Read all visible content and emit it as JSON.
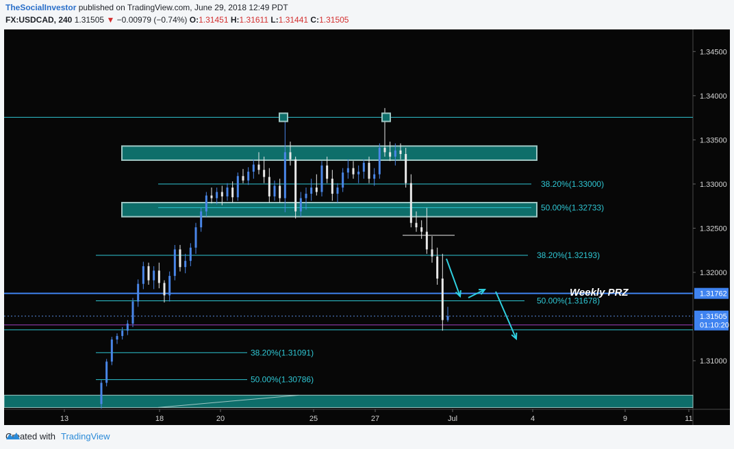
{
  "header": {
    "author": "TheSocialInvestor",
    "published_text": "published on TradingView.com, June 29, 2018 12:49 PDT",
    "symbol": "FX:USDCAD, 240",
    "last": "1.31505",
    "change": "−0.00979 (−0.74%)",
    "o_label": "O:",
    "o_value": "1.31451",
    "h_label": "H:",
    "h_value": "1.31611",
    "l_label": "L:",
    "l_value": "1.31441",
    "c_label": "C:",
    "c_value": "1.31505"
  },
  "footer": {
    "created_with": "Created with",
    "brand": "TradingView"
  },
  "colors": {
    "bull": "#4a86e8",
    "bear": "#e9e9e9",
    "zone": "#0e6e6a",
    "zone_border": "#9fc7c4",
    "fib": "#2fc7d4",
    "prz": "#3f83f0",
    "arrow": "#2fd0e0"
  },
  "chart_data": {
    "type": "candlestick",
    "y_axis": {
      "ticks": [
        "1.34500",
        "1.34000",
        "1.33500",
        "1.33000",
        "1.32500",
        "1.32000",
        "1.31000"
      ],
      "range": [
        1.3045,
        1.3475
      ]
    },
    "x_axis": {
      "ticks": [
        "13",
        "18",
        "20",
        "25",
        "27",
        "Jul",
        "4",
        "9",
        "11"
      ]
    },
    "price_badges": [
      {
        "text": "1.31762",
        "value": 1.31762
      },
      {
        "text": "1.31505",
        "value": 1.31505
      },
      {
        "text": "01:10:20",
        "value": 1.31405
      }
    ],
    "fib_levels": [
      {
        "text": "38.20%(1.33000)",
        "value": 1.33
      },
      {
        "text": "50.00%(1.32733)",
        "value": 1.32733
      },
      {
        "text": "38.20%(1.32193)",
        "value": 1.32193
      },
      {
        "text": "50.00%(1.31678)",
        "value": 1.31678
      },
      {
        "text": "38.20%(1.31091)",
        "value": 1.31091
      },
      {
        "text": "50.00%(1.30786)",
        "value": 1.30786
      }
    ],
    "zones": [
      {
        "from": 1.3327,
        "to": 1.3343
      },
      {
        "from": 1.3263,
        "to": 1.3279
      },
      {
        "from": 1.3047,
        "to": 1.3061
      }
    ],
    "horizontal_lines": [
      {
        "value": 1.33755,
        "color": "#2fc7d4"
      },
      {
        "value": 1.31762,
        "color": "#3f83f0"
      },
      {
        "value": 1.31405,
        "color": "#a040c0"
      },
      {
        "value": 1.3135,
        "color": "#2fc7d4"
      }
    ],
    "annotation": {
      "text": "Weekly PRZ"
    },
    "candles": [
      {
        "o": 1.3051,
        "h": 1.3078,
        "l": 1.3046,
        "c": 1.3075
      },
      {
        "o": 1.3075,
        "h": 1.3102,
        "l": 1.3071,
        "c": 1.3099
      },
      {
        "o": 1.3099,
        "h": 1.3127,
        "l": 1.3095,
        "c": 1.3124
      },
      {
        "o": 1.3124,
        "h": 1.3131,
        "l": 1.3119,
        "c": 1.3128
      },
      {
        "o": 1.3128,
        "h": 1.3138,
        "l": 1.3124,
        "c": 1.3134
      },
      {
        "o": 1.3134,
        "h": 1.3146,
        "l": 1.3129,
        "c": 1.3142
      },
      {
        "o": 1.3142,
        "h": 1.3171,
        "l": 1.3138,
        "c": 1.3167
      },
      {
        "o": 1.3167,
        "h": 1.3192,
        "l": 1.3161,
        "c": 1.3187
      },
      {
        "o": 1.3187,
        "h": 1.3212,
        "l": 1.3181,
        "c": 1.3207
      },
      {
        "o": 1.3207,
        "h": 1.3211,
        "l": 1.3186,
        "c": 1.3191
      },
      {
        "o": 1.3191,
        "h": 1.3207,
        "l": 1.3181,
        "c": 1.3202
      },
      {
        "o": 1.3202,
        "h": 1.3211,
        "l": 1.3182,
        "c": 1.3188
      },
      {
        "o": 1.3188,
        "h": 1.3191,
        "l": 1.3166,
        "c": 1.3174
      },
      {
        "o": 1.3174,
        "h": 1.3201,
        "l": 1.3167,
        "c": 1.3196
      },
      {
        "o": 1.3196,
        "h": 1.3231,
        "l": 1.3191,
        "c": 1.3226
      },
      {
        "o": 1.3226,
        "h": 1.3231,
        "l": 1.3201,
        "c": 1.3206
      },
      {
        "o": 1.3206,
        "h": 1.3221,
        "l": 1.3199,
        "c": 1.3213
      },
      {
        "o": 1.3213,
        "h": 1.3233,
        "l": 1.3207,
        "c": 1.3228
      },
      {
        "o": 1.3228,
        "h": 1.3256,
        "l": 1.3221,
        "c": 1.3251
      },
      {
        "o": 1.3251,
        "h": 1.3273,
        "l": 1.3246,
        "c": 1.3269
      },
      {
        "o": 1.3269,
        "h": 1.3291,
        "l": 1.3263,
        "c": 1.3287
      },
      {
        "o": 1.3287,
        "h": 1.3296,
        "l": 1.3278,
        "c": 1.3284
      },
      {
        "o": 1.3284,
        "h": 1.3296,
        "l": 1.3277,
        "c": 1.3291
      },
      {
        "o": 1.3291,
        "h": 1.3298,
        "l": 1.3276,
        "c": 1.3286
      },
      {
        "o": 1.3286,
        "h": 1.3301,
        "l": 1.3281,
        "c": 1.3296
      },
      {
        "o": 1.3296,
        "h": 1.3303,
        "l": 1.3279,
        "c": 1.3285
      },
      {
        "o": 1.3285,
        "h": 1.3313,
        "l": 1.3281,
        "c": 1.3309
      },
      {
        "o": 1.3309,
        "h": 1.3317,
        "l": 1.3301,
        "c": 1.3304
      },
      {
        "o": 1.3304,
        "h": 1.3319,
        "l": 1.3299,
        "c": 1.3314
      },
      {
        "o": 1.3314,
        "h": 1.3328,
        "l": 1.3306,
        "c": 1.3322
      },
      {
        "o": 1.3322,
        "h": 1.3336,
        "l": 1.3311,
        "c": 1.3316
      },
      {
        "o": 1.3316,
        "h": 1.3331,
        "l": 1.3301,
        "c": 1.3308
      },
      {
        "o": 1.3308,
        "h": 1.3318,
        "l": 1.3279,
        "c": 1.3286
      },
      {
        "o": 1.3286,
        "h": 1.3304,
        "l": 1.3281,
        "c": 1.3298
      },
      {
        "o": 1.3298,
        "h": 1.3306,
        "l": 1.3279,
        "c": 1.3284
      },
      {
        "o": 1.3284,
        "h": 1.3381,
        "l": 1.3268,
        "c": 1.3336
      },
      {
        "o": 1.3336,
        "h": 1.3348,
        "l": 1.3321,
        "c": 1.3328
      },
      {
        "o": 1.3328,
        "h": 1.3331,
        "l": 1.3261,
        "c": 1.3269
      },
      {
        "o": 1.3269,
        "h": 1.3291,
        "l": 1.3263,
        "c": 1.3284
      },
      {
        "o": 1.3284,
        "h": 1.3296,
        "l": 1.3271,
        "c": 1.3289
      },
      {
        "o": 1.3289,
        "h": 1.3306,
        "l": 1.3281,
        "c": 1.3296
      },
      {
        "o": 1.3296,
        "h": 1.3311,
        "l": 1.3287,
        "c": 1.3291
      },
      {
        "o": 1.3291,
        "h": 1.3326,
        "l": 1.3286,
        "c": 1.3321
      },
      {
        "o": 1.3321,
        "h": 1.3331,
        "l": 1.3301,
        "c": 1.3306
      },
      {
        "o": 1.3306,
        "h": 1.3316,
        "l": 1.3281,
        "c": 1.3289
      },
      {
        "o": 1.3289,
        "h": 1.3301,
        "l": 1.3279,
        "c": 1.3296
      },
      {
        "o": 1.3296,
        "h": 1.3318,
        "l": 1.3291,
        "c": 1.3313
      },
      {
        "o": 1.3313,
        "h": 1.3328,
        "l": 1.3306,
        "c": 1.3318
      },
      {
        "o": 1.3318,
        "h": 1.3326,
        "l": 1.3306,
        "c": 1.3311
      },
      {
        "o": 1.3311,
        "h": 1.3321,
        "l": 1.3301,
        "c": 1.3314
      },
      {
        "o": 1.3314,
        "h": 1.3328,
        "l": 1.3306,
        "c": 1.3324
      },
      {
        "o": 1.3324,
        "h": 1.3331,
        "l": 1.3301,
        "c": 1.3306
      },
      {
        "o": 1.3306,
        "h": 1.3318,
        "l": 1.3298,
        "c": 1.3311
      },
      {
        "o": 1.3311,
        "h": 1.3346,
        "l": 1.3306,
        "c": 1.3341
      },
      {
        "o": 1.3341,
        "h": 1.3386,
        "l": 1.3331,
        "c": 1.3336
      },
      {
        "o": 1.3336,
        "h": 1.3348,
        "l": 1.3326,
        "c": 1.3331
      },
      {
        "o": 1.3331,
        "h": 1.3346,
        "l": 1.3321,
        "c": 1.3338
      },
      {
        "o": 1.3338,
        "h": 1.3346,
        "l": 1.3328,
        "c": 1.3334
      },
      {
        "o": 1.3334,
        "h": 1.3341,
        "l": 1.3296,
        "c": 1.3301
      },
      {
        "o": 1.3301,
        "h": 1.3311,
        "l": 1.3251,
        "c": 1.3256
      },
      {
        "o": 1.3256,
        "h": 1.3269,
        "l": 1.3246,
        "c": 1.3251
      },
      {
        "o": 1.3251,
        "h": 1.3259,
        "l": 1.3238,
        "c": 1.3246
      },
      {
        "o": 1.3246,
        "h": 1.3273,
        "l": 1.3221,
        "c": 1.3226
      },
      {
        "o": 1.3226,
        "h": 1.3241,
        "l": 1.3211,
        "c": 1.3218
      },
      {
        "o": 1.3218,
        "h": 1.3228,
        "l": 1.3186,
        "c": 1.3193
      },
      {
        "o": 1.3193,
        "h": 1.3221,
        "l": 1.3134,
        "c": 1.3146
      },
      {
        "o": 1.3146,
        "h": 1.3161,
        "l": 1.3144,
        "c": 1.31505
      }
    ]
  }
}
